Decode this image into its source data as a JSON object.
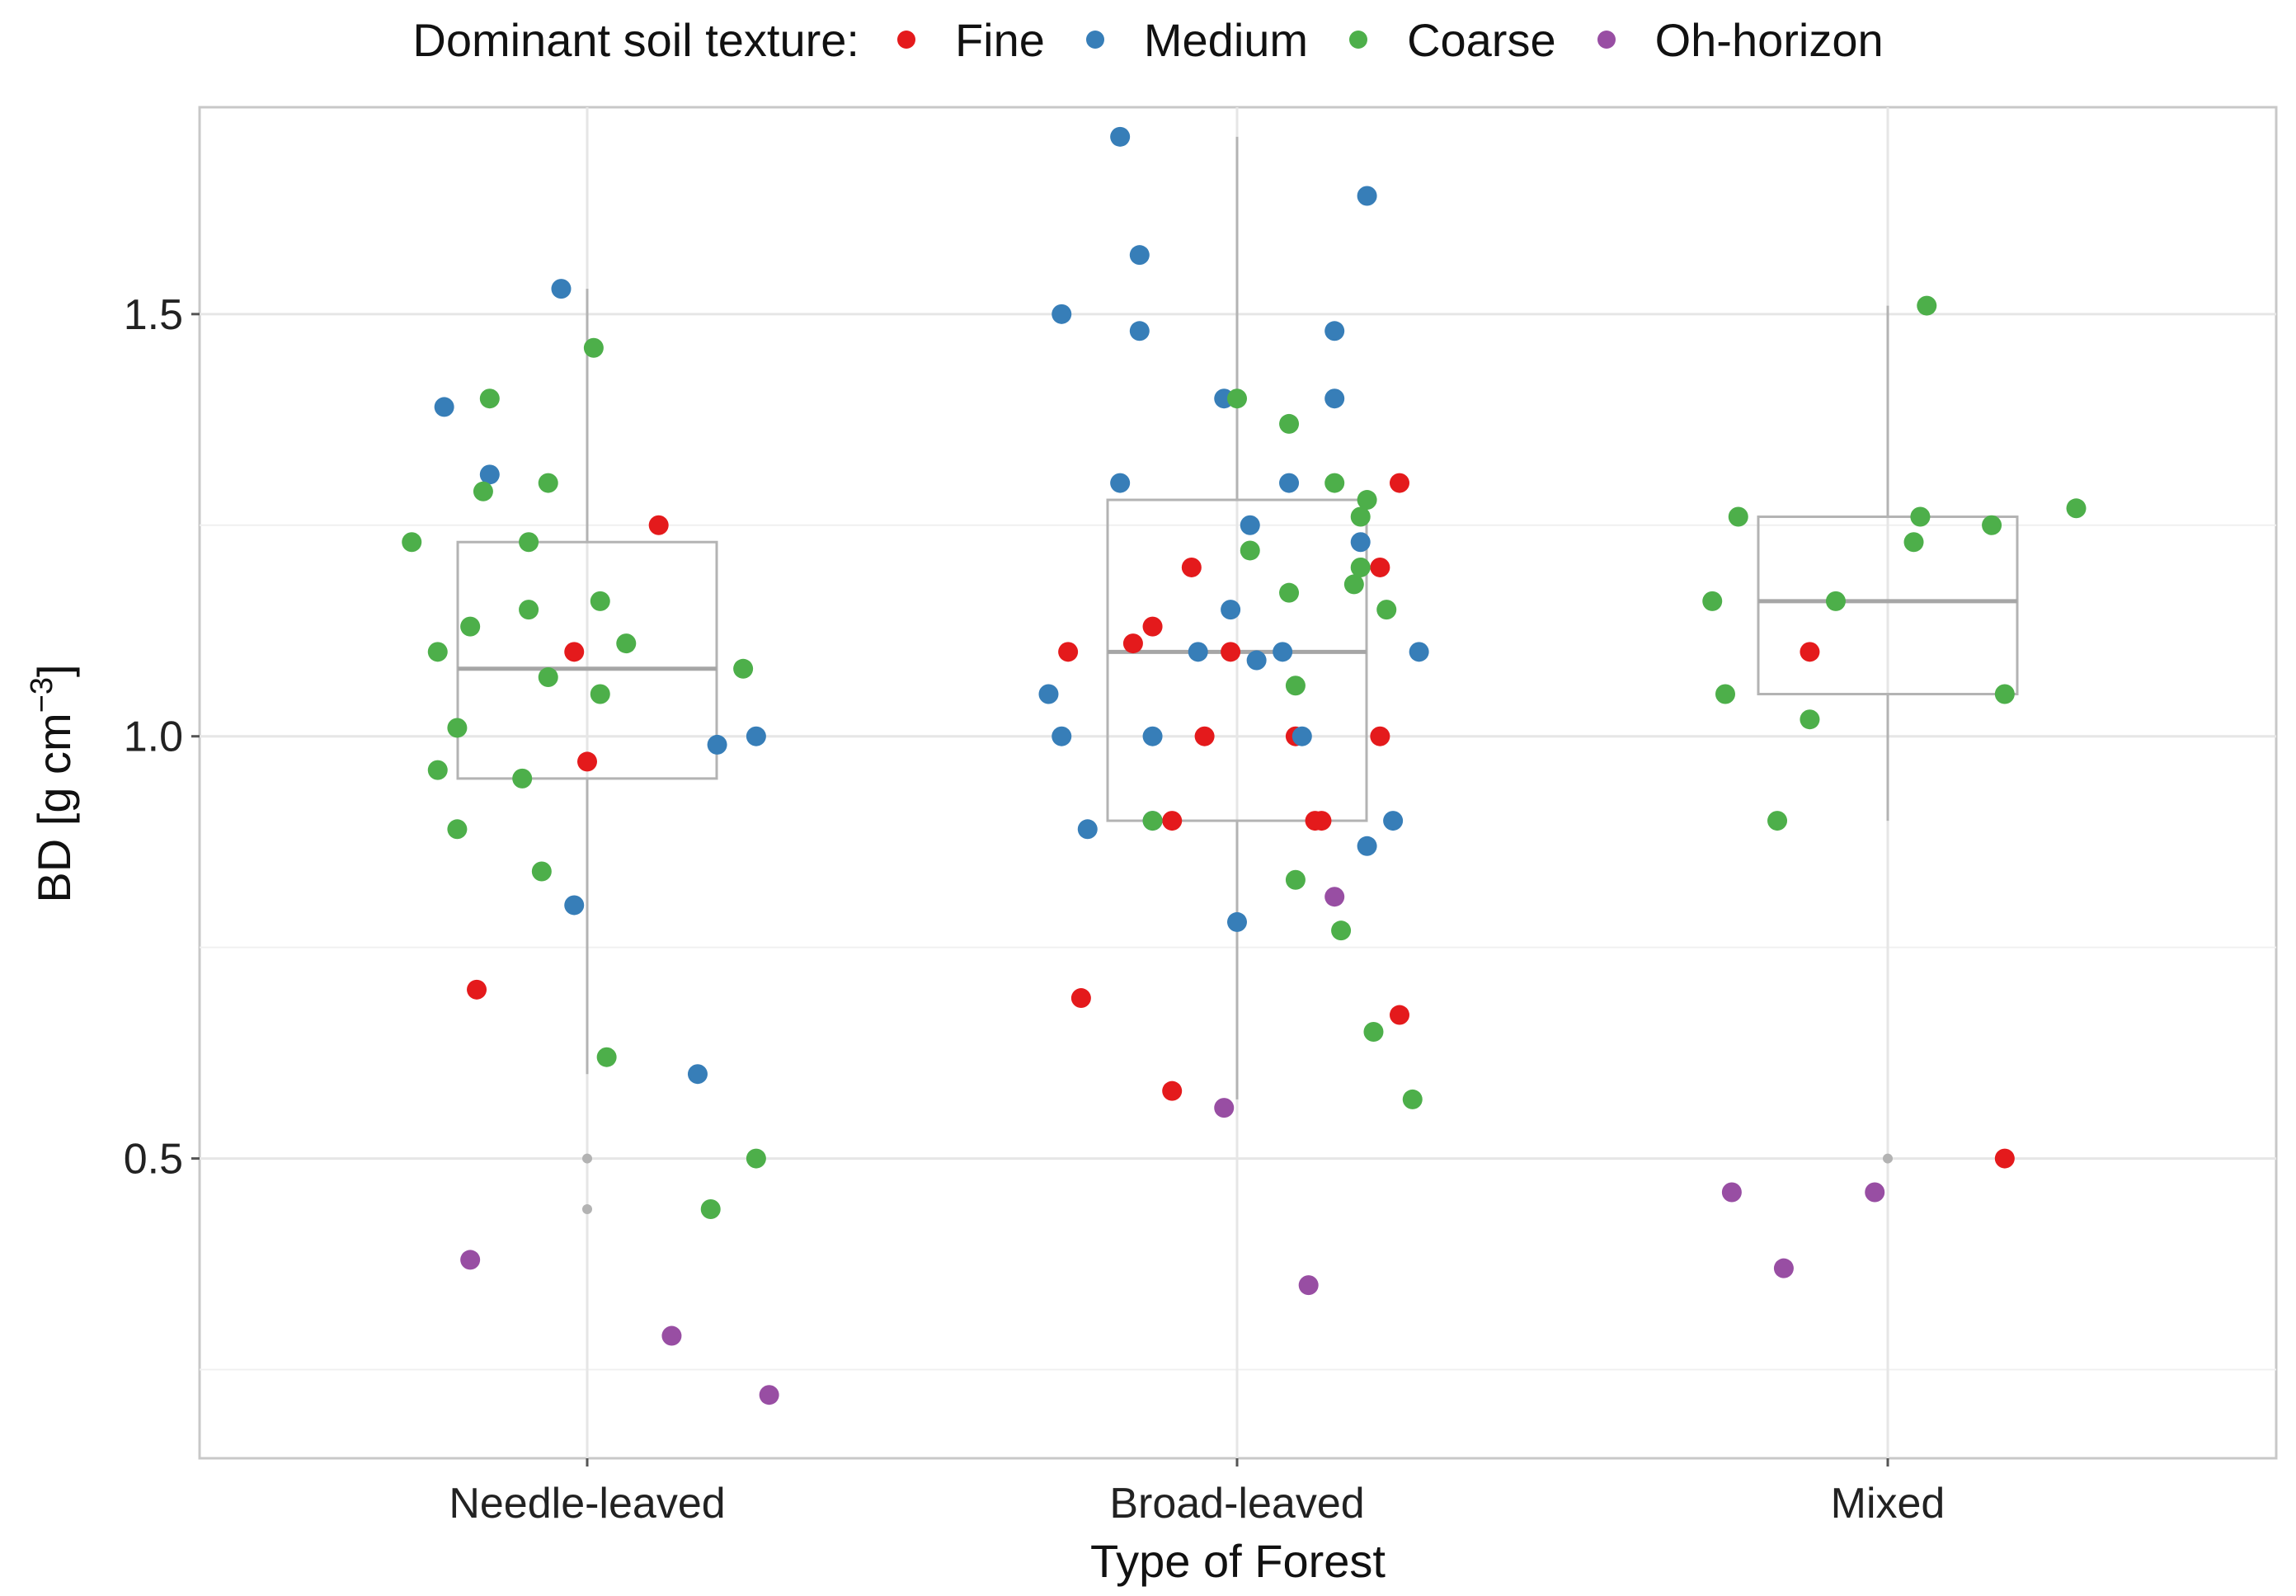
{
  "chart_data": {
    "type": "boxplot+jitter",
    "title": "",
    "xlabel": "Type of Forest",
    "ylabel": "BD [g cm",
    "ylabel_exponent": "−3",
    "ylabel_close": "]",
    "ylim": [
      0.145,
      1.745
    ],
    "yticks": [
      0.5,
      1.0,
      1.5
    ],
    "ytick_labels": [
      "0.5",
      "1.0",
      "1.5"
    ],
    "grid": true,
    "legend": {
      "title": "Dominant soil texture:",
      "position": "top",
      "entries": [
        {
          "name": "Fine",
          "color": "#e41a1c"
        },
        {
          "name": "Medium",
          "color": "#377eb8"
        },
        {
          "name": "Coarse",
          "color": "#4daf4a"
        },
        {
          "name": "Oh-horizon",
          "color": "#984ea3"
        }
      ]
    },
    "categories": [
      "Needle-leaved",
      "Broad-leaved",
      "Mixed"
    ],
    "boxes": [
      {
        "category": "Needle-leaved",
        "whisker_low": 0.6,
        "q1": 0.95,
        "median": 1.08,
        "q3": 1.23,
        "whisker_high": 1.53,
        "outliers": [
          0.5,
          0.44
        ]
      },
      {
        "category": "Broad-leaved",
        "whisker_low": 0.57,
        "q1": 0.9,
        "median": 1.1,
        "q3": 1.28,
        "whisker_high": 1.71,
        "outliers": []
      },
      {
        "category": "Mixed",
        "whisker_low": 0.9,
        "q1": 1.05,
        "median": 1.16,
        "q3": 1.26,
        "whisker_high": 1.51,
        "outliers": [
          0.5
        ]
      }
    ],
    "series": [
      {
        "name": "Fine",
        "points": [
          {
            "cat": 0,
            "jitter": -0.02,
            "y": 1.1
          },
          {
            "cat": 0,
            "jitter": 0.11,
            "y": 1.25
          },
          {
            "cat": 0,
            "jitter": 0.0,
            "y": 0.97
          },
          {
            "cat": 0,
            "jitter": -0.17,
            "y": 0.7
          },
          {
            "cat": 1,
            "jitter": -0.26,
            "y": 1.1
          },
          {
            "cat": 1,
            "jitter": -0.16,
            "y": 1.11
          },
          {
            "cat": 1,
            "jitter": -0.13,
            "y": 1.13
          },
          {
            "cat": 1,
            "jitter": -0.07,
            "y": 1.2
          },
          {
            "cat": 1,
            "jitter": -0.01,
            "y": 1.1
          },
          {
            "cat": 1,
            "jitter": -0.05,
            "y": 1.0
          },
          {
            "cat": 1,
            "jitter": 0.09,
            "y": 1.0
          },
          {
            "cat": 1,
            "jitter": 0.22,
            "y": 1.2
          },
          {
            "cat": 1,
            "jitter": 0.25,
            "y": 1.3
          },
          {
            "cat": 1,
            "jitter": 0.22,
            "y": 1.0
          },
          {
            "cat": 1,
            "jitter": -0.1,
            "y": 0.9
          },
          {
            "cat": 1,
            "jitter": 0.12,
            "y": 0.9
          },
          {
            "cat": 1,
            "jitter": 0.13,
            "y": 0.9
          },
          {
            "cat": 1,
            "jitter": -0.24,
            "y": 0.69
          },
          {
            "cat": 1,
            "jitter": 0.25,
            "y": 0.67
          },
          {
            "cat": 1,
            "jitter": -0.1,
            "y": 0.58
          },
          {
            "cat": 2,
            "jitter": -0.12,
            "y": 1.1
          },
          {
            "cat": 2,
            "jitter": 0.18,
            "y": 0.5
          }
        ]
      },
      {
        "name": "Medium",
        "points": [
          {
            "cat": 0,
            "jitter": -0.22,
            "y": 1.39
          },
          {
            "cat": 0,
            "jitter": -0.15,
            "y": 1.31
          },
          {
            "cat": 0,
            "jitter": -0.04,
            "y": 1.53
          },
          {
            "cat": 0,
            "jitter": 0.2,
            "y": 0.99
          },
          {
            "cat": 0,
            "jitter": 0.26,
            "y": 1.0
          },
          {
            "cat": 0,
            "jitter": -0.02,
            "y": 0.8
          },
          {
            "cat": 0,
            "jitter": 0.17,
            "y": 0.6
          },
          {
            "cat": 1,
            "jitter": -0.27,
            "y": 1.5
          },
          {
            "cat": 1,
            "jitter": -0.18,
            "y": 1.71
          },
          {
            "cat": 1,
            "jitter": -0.15,
            "y": 1.57
          },
          {
            "cat": 1,
            "jitter": -0.15,
            "y": 1.48
          },
          {
            "cat": 1,
            "jitter": -0.18,
            "y": 1.3
          },
          {
            "cat": 1,
            "jitter": -0.02,
            "y": 1.4
          },
          {
            "cat": 1,
            "jitter": 0.02,
            "y": 1.25
          },
          {
            "cat": 1,
            "jitter": 0.2,
            "y": 1.64
          },
          {
            "cat": 1,
            "jitter": 0.15,
            "y": 1.4
          },
          {
            "cat": 1,
            "jitter": 0.15,
            "y": 1.48
          },
          {
            "cat": 1,
            "jitter": 0.08,
            "y": 1.3
          },
          {
            "cat": 1,
            "jitter": 0.19,
            "y": 1.23
          },
          {
            "cat": 1,
            "jitter": -0.29,
            "y": 1.05
          },
          {
            "cat": 1,
            "jitter": -0.27,
            "y": 1.0
          },
          {
            "cat": 1,
            "jitter": -0.23,
            "y": 0.89
          },
          {
            "cat": 1,
            "jitter": -0.13,
            "y": 1.0
          },
          {
            "cat": 1,
            "jitter": -0.06,
            "y": 1.1
          },
          {
            "cat": 1,
            "jitter": -0.01,
            "y": 1.15
          },
          {
            "cat": 1,
            "jitter": 0.03,
            "y": 1.09
          },
          {
            "cat": 1,
            "jitter": 0.07,
            "y": 1.1
          },
          {
            "cat": 1,
            "jitter": 0.1,
            "y": 1.0
          },
          {
            "cat": 1,
            "jitter": 0.28,
            "y": 1.1
          },
          {
            "cat": 1,
            "jitter": 0.24,
            "y": 0.9
          },
          {
            "cat": 1,
            "jitter": 0.2,
            "y": 0.87
          },
          {
            "cat": 1,
            "jitter": -0.13,
            "y": 0.9
          },
          {
            "cat": 1,
            "jitter": 0.0,
            "y": 0.78
          }
        ]
      },
      {
        "name": "Coarse",
        "points": [
          {
            "cat": 0,
            "jitter": -0.27,
            "y": 1.23
          },
          {
            "cat": 0,
            "jitter": -0.15,
            "y": 1.4
          },
          {
            "cat": 0,
            "jitter": -0.16,
            "y": 1.29
          },
          {
            "cat": 0,
            "jitter": -0.06,
            "y": 1.3
          },
          {
            "cat": 0,
            "jitter": -0.09,
            "y": 1.23
          },
          {
            "cat": 0,
            "jitter": 0.01,
            "y": 1.46
          },
          {
            "cat": 0,
            "jitter": -0.23,
            "y": 1.1
          },
          {
            "cat": 0,
            "jitter": -0.18,
            "y": 1.13
          },
          {
            "cat": 0,
            "jitter": -0.09,
            "y": 1.15
          },
          {
            "cat": 0,
            "jitter": 0.02,
            "y": 1.16
          },
          {
            "cat": 0,
            "jitter": -0.06,
            "y": 1.07
          },
          {
            "cat": 0,
            "jitter": 0.06,
            "y": 1.11
          },
          {
            "cat": 0,
            "jitter": 0.02,
            "y": 1.05
          },
          {
            "cat": 0,
            "jitter": -0.2,
            "y": 1.01
          },
          {
            "cat": 0,
            "jitter": -0.23,
            "y": 0.96
          },
          {
            "cat": 0,
            "jitter": -0.1,
            "y": 0.95
          },
          {
            "cat": 0,
            "jitter": -0.2,
            "y": 0.89
          },
          {
            "cat": 0,
            "jitter": -0.07,
            "y": 0.84
          },
          {
            "cat": 0,
            "jitter": 0.24,
            "y": 1.08
          },
          {
            "cat": 0,
            "jitter": 0.03,
            "y": 0.62
          },
          {
            "cat": 0,
            "jitter": 0.26,
            "y": 0.5
          },
          {
            "cat": 0,
            "jitter": 0.19,
            "y": 0.44
          },
          {
            "cat": 1,
            "jitter": 0.0,
            "y": 1.4
          },
          {
            "cat": 1,
            "jitter": 0.08,
            "y": 1.37
          },
          {
            "cat": 1,
            "jitter": 0.15,
            "y": 1.3
          },
          {
            "cat": 1,
            "jitter": 0.2,
            "y": 1.28
          },
          {
            "cat": 1,
            "jitter": 0.19,
            "y": 1.26
          },
          {
            "cat": 1,
            "jitter": 0.02,
            "y": 1.22
          },
          {
            "cat": 1,
            "jitter": 0.19,
            "y": 1.2
          },
          {
            "cat": 1,
            "jitter": 0.18,
            "y": 1.18
          },
          {
            "cat": 1,
            "jitter": 0.08,
            "y": 1.17
          },
          {
            "cat": 1,
            "jitter": 0.23,
            "y": 1.15
          },
          {
            "cat": 1,
            "jitter": 0.09,
            "y": 1.06
          },
          {
            "cat": 1,
            "jitter": -0.13,
            "y": 0.9
          },
          {
            "cat": 1,
            "jitter": 0.09,
            "y": 0.83
          },
          {
            "cat": 1,
            "jitter": 0.16,
            "y": 0.77
          },
          {
            "cat": 1,
            "jitter": 0.21,
            "y": 0.65
          },
          {
            "cat": 1,
            "jitter": 0.27,
            "y": 0.57
          },
          {
            "cat": 2,
            "jitter": 0.06,
            "y": 1.51
          },
          {
            "cat": 2,
            "jitter": -0.23,
            "y": 1.26
          },
          {
            "cat": 2,
            "jitter": 0.05,
            "y": 1.26
          },
          {
            "cat": 2,
            "jitter": 0.16,
            "y": 1.25
          },
          {
            "cat": 2,
            "jitter": 0.29,
            "y": 1.27
          },
          {
            "cat": 2,
            "jitter": 0.04,
            "y": 1.23
          },
          {
            "cat": 2,
            "jitter": -0.27,
            "y": 1.16
          },
          {
            "cat": 2,
            "jitter": -0.08,
            "y": 1.16
          },
          {
            "cat": 2,
            "jitter": -0.25,
            "y": 1.05
          },
          {
            "cat": 2,
            "jitter": 0.18,
            "y": 1.05
          },
          {
            "cat": 2,
            "jitter": -0.12,
            "y": 1.02
          },
          {
            "cat": 2,
            "jitter": -0.17,
            "y": 0.9
          }
        ]
      },
      {
        "name": "Oh-horizon",
        "points": [
          {
            "cat": 0,
            "jitter": -0.18,
            "y": 0.38
          },
          {
            "cat": 0,
            "jitter": 0.13,
            "y": 0.29
          },
          {
            "cat": 0,
            "jitter": 0.28,
            "y": 0.22
          },
          {
            "cat": 1,
            "jitter": 0.15,
            "y": 0.81
          },
          {
            "cat": 1,
            "jitter": -0.02,
            "y": 0.56
          },
          {
            "cat": 1,
            "jitter": 0.11,
            "y": 0.35
          },
          {
            "cat": 2,
            "jitter": -0.24,
            "y": 0.46
          },
          {
            "cat": 2,
            "jitter": -0.02,
            "y": 0.46
          },
          {
            "cat": 2,
            "jitter": -0.16,
            "y": 0.37
          }
        ]
      }
    ]
  }
}
